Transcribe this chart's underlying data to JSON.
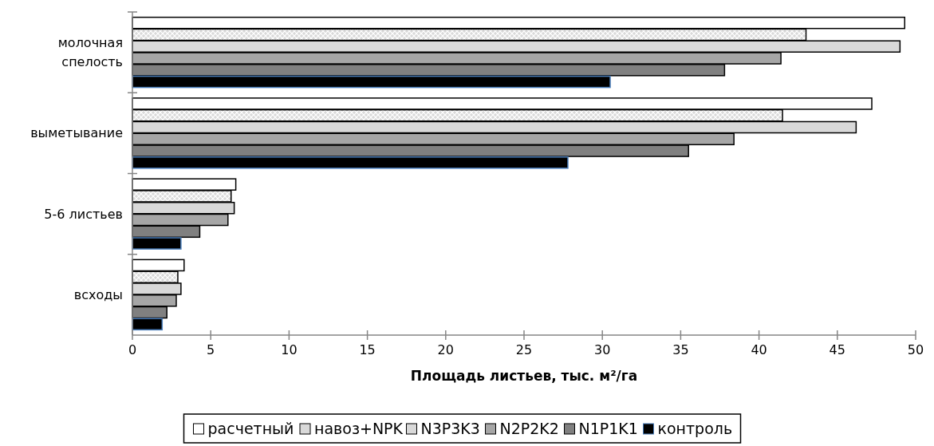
{
  "chart_data": {
    "type": "bar",
    "orientation": "horizontal",
    "categories": [
      "молочная спелость",
      "выметывание",
      "5-6 листьев",
      "всходы"
    ],
    "xlabel": "Площадь листьев, тыс. м²/га",
    "xlim": [
      0,
      50
    ],
    "xticks": [
      0,
      5,
      10,
      15,
      20,
      25,
      30,
      35,
      40,
      45,
      50
    ],
    "grid": false,
    "legend": "bottom",
    "series": [
      {
        "name": "расчетный",
        "color": "#ffffff",
        "values": [
          49.3,
          47.2,
          6.6,
          3.3
        ]
      },
      {
        "name": "навоз+NPK",
        "color": "#d9d9d9",
        "values": [
          43.0,
          41.5,
          6.3,
          2.9
        ]
      },
      {
        "name": "N3P3K3",
        "color": "#d9d9d9",
        "values": [
          49.0,
          46.2,
          6.5,
          3.1
        ]
      },
      {
        "name": "N2P2K2",
        "color": "#a6a6a6",
        "values": [
          41.4,
          38.4,
          6.1,
          2.8
        ]
      },
      {
        "name": "N1P1K1",
        "color": "#808080",
        "values": [
          37.8,
          35.5,
          4.3,
          2.2
        ]
      },
      {
        "name": "контроль",
        "color": "#000000",
        "values": [
          30.5,
          27.8,
          3.1,
          1.9
        ]
      }
    ]
  }
}
